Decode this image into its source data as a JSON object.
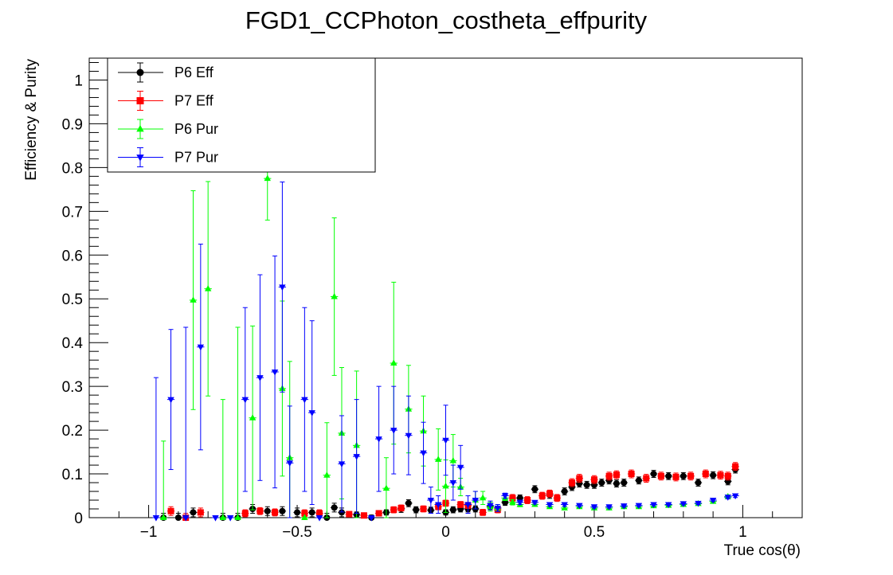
{
  "chart_data": {
    "type": "scatter",
    "title": "FGD1_CCPhoton_costheta_effpurity",
    "xlabel": "True cos(θ)",
    "ylabel": "Efficiency & Purity",
    "xlim": [
      -1.2,
      1.2
    ],
    "ylim": [
      0,
      1.05
    ],
    "x_ticks": [
      -1,
      -0.5,
      0,
      0.5,
      1
    ],
    "x_tick_labels": [
      "−1",
      "−0.5",
      "0",
      "0.5",
      "1"
    ],
    "y_ticks": [
      0,
      0.1,
      0.2,
      0.3,
      0.4,
      0.5,
      0.6,
      0.7,
      0.8,
      0.9,
      1
    ],
    "y_tick_labels": [
      "0",
      "0.1",
      "0.2",
      "0.3",
      "0.4",
      "0.5",
      "0.6",
      "0.7",
      "0.8",
      "0.9",
      "1"
    ],
    "grid": false,
    "legend_position": "top-left",
    "bin_half_width": 0.0125,
    "series": [
      {
        "name": "P6 Eff",
        "color": "#000000",
        "marker": "circle",
        "points": [
          {
            "x": -0.95,
            "y": 0.0,
            "err": 0.01
          },
          {
            "x": -0.9,
            "y": 0.0,
            "err": 0.01
          },
          {
            "x": -0.85,
            "y": 0.012,
            "err": 0.01
          },
          {
            "x": -0.75,
            "y": 0.0,
            "err": 0.01
          },
          {
            "x": -0.7,
            "y": 0.0,
            "err": 0.01
          },
          {
            "x": -0.65,
            "y": 0.02,
            "err": 0.01
          },
          {
            "x": -0.6,
            "y": 0.015,
            "err": 0.01
          },
          {
            "x": -0.55,
            "y": 0.015,
            "err": 0.01
          },
          {
            "x": -0.5,
            "y": 0.012,
            "err": 0.01
          },
          {
            "x": -0.45,
            "y": 0.012,
            "err": 0.01
          },
          {
            "x": -0.4,
            "y": 0.0,
            "err": 0.01
          },
          {
            "x": -0.375,
            "y": 0.023,
            "err": 0.01
          },
          {
            "x": -0.35,
            "y": 0.012,
            "err": 0.01
          },
          {
            "x": -0.3,
            "y": 0.007,
            "err": 0.006
          },
          {
            "x": -0.25,
            "y": 0.0,
            "err": 0.006
          },
          {
            "x": -0.2,
            "y": 0.012,
            "err": 0.006
          },
          {
            "x": -0.15,
            "y": 0.02,
            "err": 0.008
          },
          {
            "x": -0.125,
            "y": 0.033,
            "err": 0.008
          },
          {
            "x": -0.1,
            "y": 0.018,
            "err": 0.007
          },
          {
            "x": -0.05,
            "y": 0.017,
            "err": 0.007
          },
          {
            "x": 0.0,
            "y": 0.012,
            "err": 0.006
          },
          {
            "x": 0.025,
            "y": 0.018,
            "err": 0.007
          },
          {
            "x": 0.05,
            "y": 0.02,
            "err": 0.007
          },
          {
            "x": 0.075,
            "y": 0.02,
            "err": 0.007
          },
          {
            "x": 0.1,
            "y": 0.02,
            "err": 0.007
          },
          {
            "x": 0.15,
            "y": 0.025,
            "err": 0.007
          },
          {
            "x": 0.2,
            "y": 0.035,
            "err": 0.007
          },
          {
            "x": 0.25,
            "y": 0.045,
            "err": 0.007
          },
          {
            "x": 0.3,
            "y": 0.065,
            "err": 0.008
          },
          {
            "x": 0.35,
            "y": 0.052,
            "err": 0.008
          },
          {
            "x": 0.4,
            "y": 0.06,
            "err": 0.008
          },
          {
            "x": 0.425,
            "y": 0.07,
            "err": 0.008
          },
          {
            "x": 0.45,
            "y": 0.078,
            "err": 0.008
          },
          {
            "x": 0.475,
            "y": 0.075,
            "err": 0.008
          },
          {
            "x": 0.5,
            "y": 0.075,
            "err": 0.008
          },
          {
            "x": 0.525,
            "y": 0.08,
            "err": 0.008
          },
          {
            "x": 0.55,
            "y": 0.085,
            "err": 0.008
          },
          {
            "x": 0.575,
            "y": 0.078,
            "err": 0.008
          },
          {
            "x": 0.6,
            "y": 0.08,
            "err": 0.008
          },
          {
            "x": 0.65,
            "y": 0.085,
            "err": 0.008
          },
          {
            "x": 0.7,
            "y": 0.1,
            "err": 0.008
          },
          {
            "x": 0.75,
            "y": 0.095,
            "err": 0.008
          },
          {
            "x": 0.8,
            "y": 0.095,
            "err": 0.008
          },
          {
            "x": 0.85,
            "y": 0.08,
            "err": 0.008
          },
          {
            "x": 0.9,
            "y": 0.097,
            "err": 0.008
          },
          {
            "x": 0.95,
            "y": 0.083,
            "err": 0.008
          },
          {
            "x": 0.975,
            "y": 0.11,
            "err": 0.008
          }
        ]
      },
      {
        "name": "P7 Eff",
        "color": "#ff0000",
        "marker": "square",
        "points": [
          {
            "x": -0.925,
            "y": 0.015,
            "err": 0.01
          },
          {
            "x": -0.875,
            "y": 0.0,
            "err": 0.01
          },
          {
            "x": -0.825,
            "y": 0.012,
            "err": 0.01
          },
          {
            "x": -0.675,
            "y": 0.01,
            "err": 0.008
          },
          {
            "x": -0.625,
            "y": 0.015,
            "err": 0.008
          },
          {
            "x": -0.575,
            "y": 0.012,
            "err": 0.008
          },
          {
            "x": -0.475,
            "y": 0.01,
            "err": 0.008
          },
          {
            "x": -0.425,
            "y": 0.01,
            "err": 0.008
          },
          {
            "x": -0.325,
            "y": 0.008,
            "err": 0.006
          },
          {
            "x": -0.275,
            "y": 0.005,
            "err": 0.006
          },
          {
            "x": -0.225,
            "y": 0.01,
            "err": 0.006
          },
          {
            "x": -0.175,
            "y": 0.018,
            "err": 0.007
          },
          {
            "x": -0.15,
            "y": 0.022,
            "err": 0.007
          },
          {
            "x": -0.075,
            "y": 0.02,
            "err": 0.007
          },
          {
            "x": -0.025,
            "y": 0.025,
            "err": 0.007
          },
          {
            "x": 0.0,
            "y": 0.033,
            "err": 0.007
          },
          {
            "x": 0.05,
            "y": 0.03,
            "err": 0.007
          },
          {
            "x": 0.075,
            "y": 0.028,
            "err": 0.007
          },
          {
            "x": 0.125,
            "y": 0.012,
            "err": 0.007
          },
          {
            "x": 0.175,
            "y": 0.018,
            "err": 0.007
          },
          {
            "x": 0.225,
            "y": 0.045,
            "err": 0.008
          },
          {
            "x": 0.275,
            "y": 0.04,
            "err": 0.008
          },
          {
            "x": 0.325,
            "y": 0.05,
            "err": 0.008
          },
          {
            "x": 0.35,
            "y": 0.055,
            "err": 0.008
          },
          {
            "x": 0.375,
            "y": 0.045,
            "err": 0.008
          },
          {
            "x": 0.425,
            "y": 0.08,
            "err": 0.009
          },
          {
            "x": 0.45,
            "y": 0.09,
            "err": 0.009
          },
          {
            "x": 0.5,
            "y": 0.087,
            "err": 0.009
          },
          {
            "x": 0.55,
            "y": 0.095,
            "err": 0.009
          },
          {
            "x": 0.575,
            "y": 0.098,
            "err": 0.009
          },
          {
            "x": 0.625,
            "y": 0.1,
            "err": 0.009
          },
          {
            "x": 0.675,
            "y": 0.09,
            "err": 0.009
          },
          {
            "x": 0.725,
            "y": 0.095,
            "err": 0.009
          },
          {
            "x": 0.775,
            "y": 0.093,
            "err": 0.009
          },
          {
            "x": 0.825,
            "y": 0.095,
            "err": 0.009
          },
          {
            "x": 0.875,
            "y": 0.1,
            "err": 0.009
          },
          {
            "x": 0.925,
            "y": 0.097,
            "err": 0.009
          },
          {
            "x": 0.95,
            "y": 0.095,
            "err": 0.009
          },
          {
            "x": 0.975,
            "y": 0.117,
            "err": 0.009
          }
        ]
      },
      {
        "name": "P6 Pur",
        "color": "#00ff00",
        "marker": "triangle-up",
        "points": [
          {
            "x": -0.95,
            "y": 0.0,
            "err": 0.175
          },
          {
            "x": -0.85,
            "y": 0.497,
            "err": 0.25
          },
          {
            "x": -0.8,
            "y": 0.523,
            "err": 0.245
          },
          {
            "x": -0.75,
            "y": 0.0,
            "err": 0.27
          },
          {
            "x": -0.7,
            "y": 0.0,
            "err": 0.435
          },
          {
            "x": -0.65,
            "y": 0.228,
            "err": 0.21
          },
          {
            "x": -0.6,
            "y": 0.775,
            "err": 0.095
          },
          {
            "x": -0.55,
            "y": 0.295,
            "err": 0.2
          },
          {
            "x": -0.525,
            "y": 0.137,
            "err": 0.22
          },
          {
            "x": -0.475,
            "y": 0.0,
            "err": 0.0
          },
          {
            "x": -0.4,
            "y": 0.097,
            "err": 0.12
          },
          {
            "x": -0.35,
            "y": 0.193,
            "err": 0.15
          },
          {
            "x": -0.375,
            "y": 0.505,
            "err": 0.18
          },
          {
            "x": -0.3,
            "y": 0.165,
            "err": 0.17
          },
          {
            "x": -0.2,
            "y": 0.067,
            "err": 0.07
          },
          {
            "x": -0.175,
            "y": 0.353,
            "err": 0.185
          },
          {
            "x": -0.125,
            "y": 0.248,
            "err": 0.1
          },
          {
            "x": -0.075,
            "y": 0.198,
            "err": 0.08
          },
          {
            "x": -0.025,
            "y": 0.133,
            "err": 0.07
          },
          {
            "x": 0.0,
            "y": 0.072,
            "err": 0.06
          },
          {
            "x": 0.025,
            "y": 0.13,
            "err": 0.06
          },
          {
            "x": 0.05,
            "y": 0.07,
            "err": 0.02
          },
          {
            "x": 0.1,
            "y": 0.04,
            "err": 0.02
          },
          {
            "x": 0.125,
            "y": 0.045,
            "err": 0.015
          },
          {
            "x": 0.15,
            "y": 0.025,
            "err": 0.01
          },
          {
            "x": 0.175,
            "y": 0.022,
            "err": 0.008
          },
          {
            "x": 0.2,
            "y": 0.045,
            "err": 0.006
          },
          {
            "x": 0.225,
            "y": 0.035,
            "err": 0.006
          },
          {
            "x": 0.25,
            "y": 0.03,
            "err": 0.005
          },
          {
            "x": 0.3,
            "y": 0.03,
            "err": 0.004
          },
          {
            "x": 0.35,
            "y": 0.025,
            "err": 0.004
          },
          {
            "x": 0.4,
            "y": 0.022,
            "err": 0.004
          },
          {
            "x": 0.45,
            "y": 0.025,
            "err": 0.004
          },
          {
            "x": 0.5,
            "y": 0.022,
            "err": 0.003
          },
          {
            "x": 0.55,
            "y": 0.022,
            "err": 0.003
          },
          {
            "x": 0.6,
            "y": 0.025,
            "err": 0.003
          },
          {
            "x": 0.65,
            "y": 0.025,
            "err": 0.003
          },
          {
            "x": 0.7,
            "y": 0.027,
            "err": 0.003
          },
          {
            "x": 0.75,
            "y": 0.028,
            "err": 0.003
          },
          {
            "x": 0.8,
            "y": 0.03,
            "err": 0.003
          },
          {
            "x": 0.85,
            "y": 0.032,
            "err": 0.003
          },
          {
            "x": 0.9,
            "y": 0.037,
            "err": 0.003
          },
          {
            "x": 0.95,
            "y": 0.048,
            "err": 0.004
          }
        ]
      },
      {
        "name": "P7 Pur",
        "color": "#0000ff",
        "marker": "triangle-down",
        "points": [
          {
            "x": -0.975,
            "y": 0.0,
            "err": 0.32
          },
          {
            "x": -0.925,
            "y": 0.27,
            "err": 0.16
          },
          {
            "x": -0.875,
            "y": 0.0,
            "err": 0.435
          },
          {
            "x": -0.825,
            "y": 0.39,
            "err": 0.235
          },
          {
            "x": -0.775,
            "y": 0.0,
            "err": 0.0
          },
          {
            "x": -0.725,
            "y": 0.0,
            "err": 0.0
          },
          {
            "x": -0.675,
            "y": 0.27,
            "err": 0.21
          },
          {
            "x": -0.625,
            "y": 0.32,
            "err": 0.235
          },
          {
            "x": -0.575,
            "y": 0.333,
            "err": 0.265
          },
          {
            "x": -0.55,
            "y": 0.527,
            "err": 0.24
          },
          {
            "x": -0.525,
            "y": 0.125,
            "err": 0.13
          },
          {
            "x": -0.475,
            "y": 0.27,
            "err": 0.21
          },
          {
            "x": -0.45,
            "y": 0.24,
            "err": 0.21
          },
          {
            "x": -0.425,
            "y": 0.0,
            "err": 0.0
          },
          {
            "x": -0.35,
            "y": 0.123,
            "err": 0.11
          },
          {
            "x": -0.3,
            "y": 0.14,
            "err": 0.13
          },
          {
            "x": -0.25,
            "y": 0.0,
            "err": 0.0
          },
          {
            "x": -0.225,
            "y": 0.18,
            "err": 0.12
          },
          {
            "x": -0.175,
            "y": 0.2,
            "err": 0.1
          },
          {
            "x": -0.125,
            "y": 0.188,
            "err": 0.09
          },
          {
            "x": -0.075,
            "y": 0.148,
            "err": 0.07
          },
          {
            "x": -0.05,
            "y": 0.04,
            "err": 0.03
          },
          {
            "x": -0.025,
            "y": 0.03,
            "err": 0.02
          },
          {
            "x": 0.0,
            "y": 0.177,
            "err": 0.08
          },
          {
            "x": 0.025,
            "y": 0.08,
            "err": 0.04
          },
          {
            "x": 0.05,
            "y": 0.115,
            "err": 0.05
          },
          {
            "x": 0.075,
            "y": 0.03,
            "err": 0.02
          },
          {
            "x": 0.1,
            "y": 0.04,
            "err": 0.02
          },
          {
            "x": 0.15,
            "y": 0.028,
            "err": 0.01
          },
          {
            "x": 0.175,
            "y": 0.022,
            "err": 0.008
          },
          {
            "x": 0.2,
            "y": 0.05,
            "err": 0.006
          },
          {
            "x": 0.25,
            "y": 0.035,
            "err": 0.005
          },
          {
            "x": 0.3,
            "y": 0.035,
            "err": 0.004
          },
          {
            "x": 0.35,
            "y": 0.03,
            "err": 0.004
          },
          {
            "x": 0.4,
            "y": 0.03,
            "err": 0.004
          },
          {
            "x": 0.45,
            "y": 0.028,
            "err": 0.003
          },
          {
            "x": 0.5,
            "y": 0.025,
            "err": 0.003
          },
          {
            "x": 0.55,
            "y": 0.025,
            "err": 0.003
          },
          {
            "x": 0.6,
            "y": 0.027,
            "err": 0.003
          },
          {
            "x": 0.65,
            "y": 0.028,
            "err": 0.003
          },
          {
            "x": 0.7,
            "y": 0.03,
            "err": 0.003
          },
          {
            "x": 0.75,
            "y": 0.03,
            "err": 0.003
          },
          {
            "x": 0.8,
            "y": 0.032,
            "err": 0.003
          },
          {
            "x": 0.85,
            "y": 0.033,
            "err": 0.003
          },
          {
            "x": 0.9,
            "y": 0.04,
            "err": 0.003
          },
          {
            "x": 0.95,
            "y": 0.047,
            "err": 0.004
          },
          {
            "x": 0.975,
            "y": 0.05,
            "err": 0.004
          }
        ]
      }
    ]
  }
}
